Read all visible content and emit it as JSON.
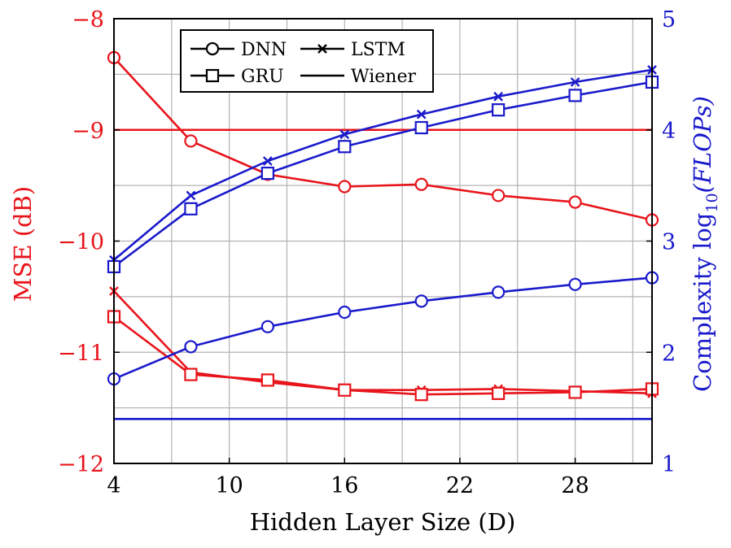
{
  "chart_data": {
    "type": "line",
    "xlabel": "Hidden Layer Size (D)",
    "ylabel_left": "MSE (dB)",
    "ylabel_right_prefix": "Complexity log",
    "ylabel_right_sub": "10",
    "ylabel_right_arg": "(FLOPs)",
    "xlim": [
      4,
      32
    ],
    "ylim_left": [
      -12,
      -8
    ],
    "ylim_right": [
      1,
      5
    ],
    "x_ticks": [
      4,
      10,
      16,
      22,
      28
    ],
    "x_tick_labels": [
      "4",
      "10",
      "16",
      "22",
      "28"
    ],
    "x_grid": [
      4,
      7,
      10,
      13,
      16,
      19,
      22,
      25,
      28,
      31
    ],
    "y_left_ticks": [
      -12,
      -11,
      -10,
      -9,
      -8
    ],
    "y_left_tick_labels": [
      "−12",
      "−11",
      "−10",
      "−9",
      "−8"
    ],
    "y_left_grid": [
      -11.5,
      -11,
      -10.5,
      -10,
      -9.5,
      -9,
      -8.5
    ],
    "y_right_ticks": [
      1,
      2,
      3,
      4,
      5
    ],
    "y_right_tick_labels": [
      "1",
      "2",
      "3",
      "4",
      "5"
    ],
    "grid": true,
    "colors": {
      "mse": "#e8141b",
      "complexity": "#1a1acc",
      "grid": "#b3b3b3",
      "axis": "#000000"
    },
    "legend": {
      "placement": "top-left",
      "entries": [
        {
          "label": "DNN",
          "marker": "circle"
        },
        {
          "label": "LSTM",
          "marker": "cross"
        },
        {
          "label": "GRU",
          "marker": "square"
        },
        {
          "label": "Wiener",
          "marker": "none"
        }
      ]
    },
    "x": [
      4,
      8,
      12,
      16,
      20,
      24,
      28,
      32
    ],
    "series": [
      {
        "group": "mse",
        "model": "DNN",
        "marker": "circle",
        "values": [
          -8.35,
          -9.1,
          -9.4,
          -9.51,
          -9.49,
          -9.59,
          -9.65,
          -9.81
        ]
      },
      {
        "group": "mse",
        "model": "LSTM",
        "marker": "cross",
        "values": [
          -10.45,
          -11.18,
          -11.27,
          -11.34,
          -11.34,
          -11.33,
          -11.35,
          -11.37
        ]
      },
      {
        "group": "mse",
        "model": "GRU",
        "marker": "square",
        "values": [
          -10.68,
          -11.2,
          -11.25,
          -11.34,
          -11.38,
          -11.37,
          -11.36,
          -11.33
        ]
      },
      {
        "group": "mse",
        "model": "Wiener",
        "marker": "none",
        "values": [
          -9.0,
          -9.0,
          -9.0,
          -9.0,
          -9.0,
          -9.0,
          -9.0,
          -9.0
        ]
      },
      {
        "group": "complexity",
        "model": "DNN",
        "marker": "circle",
        "values": [
          1.76,
          2.05,
          2.23,
          2.36,
          2.46,
          2.54,
          2.61,
          2.67
        ]
      },
      {
        "group": "complexity",
        "model": "LSTM",
        "marker": "cross",
        "values": [
          2.83,
          3.41,
          3.72,
          3.96,
          4.14,
          4.3,
          4.43,
          4.54
        ]
      },
      {
        "group": "complexity",
        "model": "GRU",
        "marker": "square",
        "values": [
          2.77,
          3.29,
          3.61,
          3.85,
          4.02,
          4.18,
          4.31,
          4.43
        ]
      },
      {
        "group": "complexity",
        "model": "Wiener",
        "marker": "none",
        "values": [
          1.4,
          1.4,
          1.4,
          1.4,
          1.4,
          1.4,
          1.4,
          1.4
        ]
      }
    ]
  }
}
